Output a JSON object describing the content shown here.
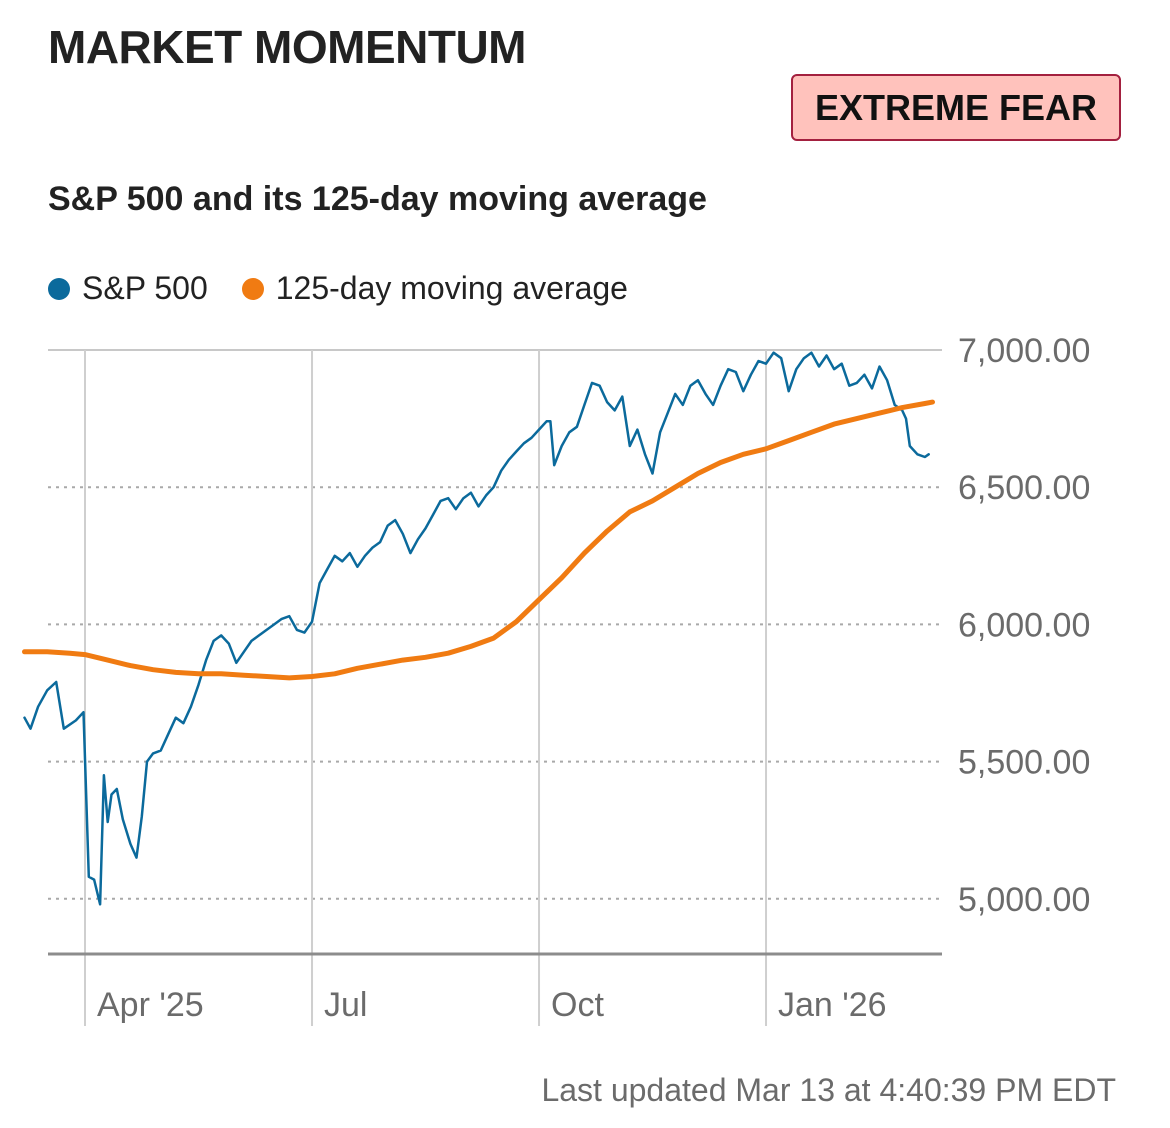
{
  "header": {
    "title": "MARKET MOMENTUM",
    "badge": "EXTREME FEAR"
  },
  "subtitle": "S&P 500 and its 125-day moving average",
  "legend": [
    {
      "label": "S&P 500",
      "color": "#0b6a9c"
    },
    {
      "label": "125-day moving average",
      "color": "#f07b12"
    }
  ],
  "footer": {
    "updated": "Last updated Mar 13 at 4:40:39 PM EDT"
  },
  "chart_data": {
    "type": "line",
    "title": "S&P 500 and its 125-day moving average",
    "xlabel": "",
    "ylabel": "",
    "x_range_months": [
      -0.8,
      11.6
    ],
    "ylim": [
      4800,
      7000
    ],
    "y_ticks": [
      7000,
      6500,
      6000,
      5500,
      5000
    ],
    "y_tick_labels": [
      "7,000.00",
      "6,500.00",
      "6,000.00",
      "5,500.00",
      "5,000.00"
    ],
    "x_ticks": [
      {
        "label": "Apr '25",
        "month": 0
      },
      {
        "label": "Jul",
        "month": 3
      },
      {
        "label": "Oct",
        "month": 6
      },
      {
        "label": "Jan '26",
        "month": 9
      }
    ],
    "series": [
      {
        "name": "S&P 500",
        "color": "#0b6a9c",
        "points": [
          [
            -0.8,
            5660
          ],
          [
            -0.72,
            5620
          ],
          [
            -0.62,
            5700
          ],
          [
            -0.5,
            5760
          ],
          [
            -0.38,
            5790
          ],
          [
            -0.28,
            5620
          ],
          [
            -0.12,
            5650
          ],
          [
            -0.02,
            5680
          ],
          [
            0.05,
            5080
          ],
          [
            0.12,
            5070
          ],
          [
            0.2,
            4980
          ],
          [
            0.25,
            5450
          ],
          [
            0.3,
            5280
          ],
          [
            0.35,
            5380
          ],
          [
            0.42,
            5400
          ],
          [
            0.5,
            5290
          ],
          [
            0.6,
            5200
          ],
          [
            0.68,
            5150
          ],
          [
            0.75,
            5300
          ],
          [
            0.82,
            5500
          ],
          [
            0.9,
            5530
          ],
          [
            1.0,
            5540
          ],
          [
            1.1,
            5600
          ],
          [
            1.2,
            5660
          ],
          [
            1.3,
            5640
          ],
          [
            1.4,
            5700
          ],
          [
            1.5,
            5780
          ],
          [
            1.6,
            5870
          ],
          [
            1.7,
            5940
          ],
          [
            1.8,
            5960
          ],
          [
            1.9,
            5930
          ],
          [
            2.0,
            5860
          ],
          [
            2.1,
            5900
          ],
          [
            2.2,
            5940
          ],
          [
            2.3,
            5960
          ],
          [
            2.4,
            5980
          ],
          [
            2.5,
            6000
          ],
          [
            2.6,
            6020
          ],
          [
            2.7,
            6030
          ],
          [
            2.8,
            5980
          ],
          [
            2.9,
            5970
          ],
          [
            3.0,
            6010
          ],
          [
            3.1,
            6150
          ],
          [
            3.2,
            6200
          ],
          [
            3.3,
            6250
          ],
          [
            3.4,
            6230
          ],
          [
            3.5,
            6260
          ],
          [
            3.6,
            6210
          ],
          [
            3.7,
            6250
          ],
          [
            3.8,
            6280
          ],
          [
            3.9,
            6300
          ],
          [
            4.0,
            6360
          ],
          [
            4.1,
            6380
          ],
          [
            4.2,
            6330
          ],
          [
            4.3,
            6260
          ],
          [
            4.4,
            6310
          ],
          [
            4.5,
            6350
          ],
          [
            4.6,
            6400
          ],
          [
            4.7,
            6450
          ],
          [
            4.8,
            6460
          ],
          [
            4.9,
            6420
          ],
          [
            5.0,
            6460
          ],
          [
            5.1,
            6480
          ],
          [
            5.2,
            6430
          ],
          [
            5.3,
            6470
          ],
          [
            5.4,
            6500
          ],
          [
            5.5,
            6560
          ],
          [
            5.6,
            6600
          ],
          [
            5.7,
            6630
          ],
          [
            5.8,
            6660
          ],
          [
            5.9,
            6680
          ],
          [
            6.0,
            6710
          ],
          [
            6.1,
            6740
          ],
          [
            6.15,
            6740
          ],
          [
            6.2,
            6580
          ],
          [
            6.3,
            6650
          ],
          [
            6.4,
            6700
          ],
          [
            6.5,
            6720
          ],
          [
            6.6,
            6800
          ],
          [
            6.7,
            6880
          ],
          [
            6.8,
            6870
          ],
          [
            6.9,
            6810
          ],
          [
            7.0,
            6780
          ],
          [
            7.1,
            6830
          ],
          [
            7.2,
            6650
          ],
          [
            7.3,
            6710
          ],
          [
            7.4,
            6620
          ],
          [
            7.5,
            6550
          ],
          [
            7.6,
            6700
          ],
          [
            7.7,
            6770
          ],
          [
            7.8,
            6840
          ],
          [
            7.9,
            6800
          ],
          [
            8.0,
            6870
          ],
          [
            8.1,
            6890
          ],
          [
            8.2,
            6840
          ],
          [
            8.3,
            6800
          ],
          [
            8.4,
            6870
          ],
          [
            8.5,
            6930
          ],
          [
            8.6,
            6920
          ],
          [
            8.7,
            6850
          ],
          [
            8.8,
            6910
          ],
          [
            8.9,
            6960
          ],
          [
            9.0,
            6950
          ],
          [
            9.1,
            6990
          ],
          [
            9.2,
            6970
          ],
          [
            9.3,
            6850
          ],
          [
            9.4,
            6930
          ],
          [
            9.5,
            6970
          ],
          [
            9.6,
            6990
          ],
          [
            9.7,
            6940
          ],
          [
            9.8,
            6980
          ],
          [
            9.9,
            6930
          ],
          [
            10.0,
            6950
          ],
          [
            10.1,
            6870
          ],
          [
            10.2,
            6880
          ],
          [
            10.3,
            6910
          ],
          [
            10.4,
            6860
          ],
          [
            10.5,
            6940
          ],
          [
            10.6,
            6890
          ],
          [
            10.7,
            6800
          ],
          [
            10.8,
            6780
          ],
          [
            10.85,
            6750
          ],
          [
            10.9,
            6650
          ],
          [
            11.0,
            6620
          ],
          [
            11.1,
            6610
          ],
          [
            11.15,
            6620
          ]
        ]
      },
      {
        "name": "125-day moving average",
        "color": "#f07b12",
        "points": [
          [
            -0.8,
            5900
          ],
          [
            -0.5,
            5900
          ],
          [
            -0.2,
            5895
          ],
          [
            0.0,
            5890
          ],
          [
            0.3,
            5870
          ],
          [
            0.6,
            5850
          ],
          [
            0.9,
            5835
          ],
          [
            1.2,
            5825
          ],
          [
            1.5,
            5820
          ],
          [
            1.8,
            5820
          ],
          [
            2.1,
            5815
          ],
          [
            2.4,
            5810
          ],
          [
            2.7,
            5805
          ],
          [
            3.0,
            5810
          ],
          [
            3.3,
            5820
          ],
          [
            3.6,
            5840
          ],
          [
            3.9,
            5855
          ],
          [
            4.2,
            5870
          ],
          [
            4.5,
            5880
          ],
          [
            4.8,
            5895
          ],
          [
            5.1,
            5920
          ],
          [
            5.4,
            5950
          ],
          [
            5.7,
            6010
          ],
          [
            6.0,
            6090
          ],
          [
            6.3,
            6170
          ],
          [
            6.6,
            6260
          ],
          [
            6.9,
            6340
          ],
          [
            7.2,
            6410
          ],
          [
            7.5,
            6450
          ],
          [
            7.8,
            6500
          ],
          [
            8.1,
            6550
          ],
          [
            8.4,
            6590
          ],
          [
            8.7,
            6620
          ],
          [
            9.0,
            6640
          ],
          [
            9.3,
            6670
          ],
          [
            9.6,
            6700
          ],
          [
            9.9,
            6730
          ],
          [
            10.2,
            6750
          ],
          [
            10.5,
            6770
          ],
          [
            10.8,
            6790
          ],
          [
            11.1,
            6805
          ],
          [
            11.2,
            6810
          ]
        ]
      }
    ]
  }
}
